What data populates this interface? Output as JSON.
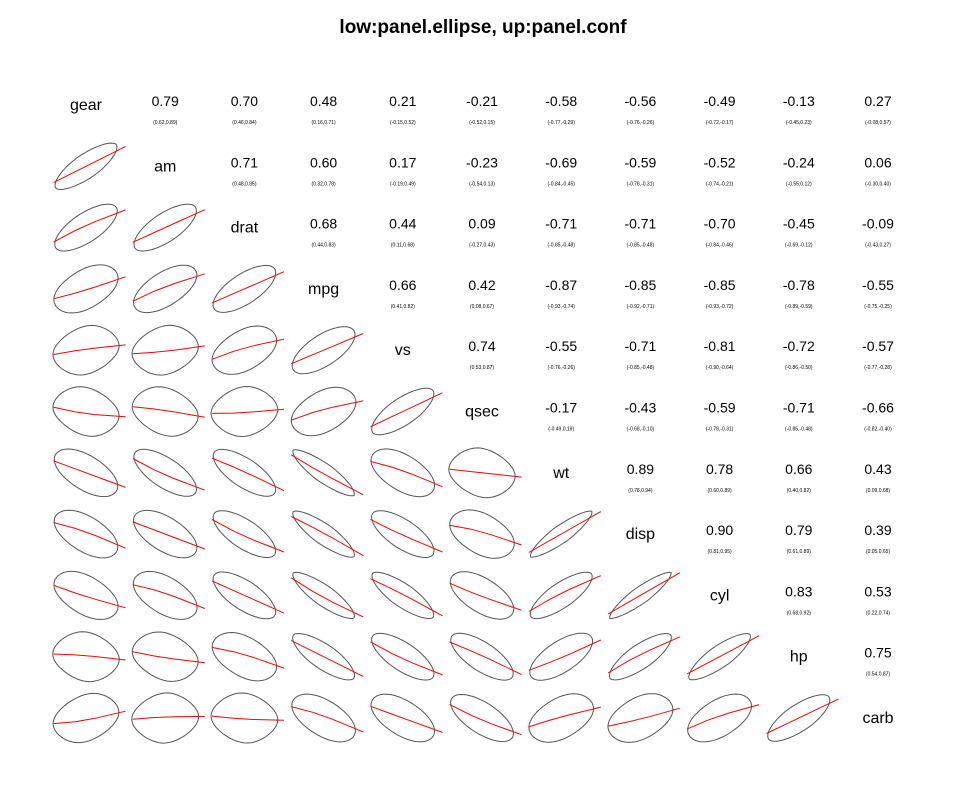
{
  "title": "low:panel.ellipse, up:panel.conf",
  "chart_data": {
    "type": "pairs",
    "lower_panel": "ellipse",
    "upper_panel": "conf",
    "variables": [
      "gear",
      "am",
      "drat",
      "mpg",
      "vs",
      "qsec",
      "wt",
      "disp",
      "cyl",
      "hp",
      "carb"
    ],
    "correlations": [
      [
        1,
        0.79,
        0.7,
        0.48,
        0.21,
        -0.21,
        -0.58,
        -0.56,
        -0.49,
        -0.13,
        0.27
      ],
      [
        0.79,
        1,
        0.71,
        0.6,
        0.17,
        -0.23,
        -0.69,
        -0.59,
        -0.52,
        -0.24,
        0.06
      ],
      [
        0.7,
        0.71,
        1,
        0.68,
        0.44,
        0.09,
        -0.71,
        -0.71,
        -0.7,
        -0.45,
        -0.09
      ],
      [
        0.48,
        0.6,
        0.68,
        1,
        0.66,
        0.42,
        -0.87,
        -0.85,
        -0.85,
        -0.78,
        -0.55
      ],
      [
        0.21,
        0.17,
        0.44,
        0.66,
        1,
        0.74,
        -0.55,
        -0.71,
        -0.81,
        -0.72,
        -0.57
      ],
      [
        -0.21,
        -0.23,
        0.09,
        0.42,
        0.74,
        1,
        -0.17,
        -0.43,
        -0.59,
        -0.71,
        -0.66
      ],
      [
        -0.58,
        -0.69,
        -0.71,
        -0.87,
        -0.55,
        -0.17,
        1,
        0.89,
        0.78,
        0.66,
        0.43
      ],
      [
        -0.56,
        -0.59,
        -0.71,
        -0.85,
        -0.71,
        -0.43,
        0.89,
        1,
        0.9,
        0.79,
        0.39
      ],
      [
        -0.49,
        -0.52,
        -0.7,
        -0.85,
        -0.81,
        -0.59,
        0.78,
        0.9,
        1,
        0.83,
        0.53
      ],
      [
        -0.13,
        -0.24,
        -0.45,
        -0.78,
        -0.72,
        -0.71,
        0.66,
        0.79,
        0.83,
        1,
        0.75
      ],
      [
        0.27,
        0.06,
        -0.09,
        -0.55,
        -0.57,
        -0.66,
        0.43,
        0.39,
        0.53,
        0.75,
        1
      ]
    ],
    "upper_cells": [
      [
        0,
        1,
        "0.79",
        "(0.62,0.89)"
      ],
      [
        0,
        2,
        "0.70",
        "(0.46,0.84)"
      ],
      [
        0,
        3,
        "0.48",
        "(0.16,0.71)"
      ],
      [
        0,
        4,
        "0.21",
        "(-0.15,0.52)"
      ],
      [
        0,
        5,
        "-0.21",
        "(-0.52,0.15)"
      ],
      [
        0,
        6,
        "-0.58",
        "(-0.77,-0.29)"
      ],
      [
        0,
        7,
        "-0.56",
        "(-0.76,-0.26)"
      ],
      [
        0,
        8,
        "-0.49",
        "(-0.72,-0.17)"
      ],
      [
        0,
        9,
        "-0.13",
        "(-0.45,0.23)"
      ],
      [
        0,
        10,
        "0.27",
        "(-0.08,0.57)"
      ],
      [
        1,
        2,
        "0.71",
        "(0.48,0.85)"
      ],
      [
        1,
        3,
        "0.60",
        "(0.32,0.78)"
      ],
      [
        1,
        4,
        "0.17",
        "(-0.19,0.49)"
      ],
      [
        1,
        5,
        "-0.23",
        "(-0.54,0.13)"
      ],
      [
        1,
        6,
        "-0.69",
        "(-0.84,-0.45)"
      ],
      [
        1,
        7,
        "-0.59",
        "(-0.78,-0.31)"
      ],
      [
        1,
        8,
        "-0.52",
        "(-0.74,-0.21)"
      ],
      [
        1,
        9,
        "-0.24",
        "(-0.55,0.12)"
      ],
      [
        1,
        10,
        "0.06",
        "(-0.30,0.40)"
      ],
      [
        2,
        3,
        "0.68",
        "(0.44,0.83)"
      ],
      [
        2,
        4,
        "0.44",
        "(0.11,0.68)"
      ],
      [
        2,
        5,
        "0.09",
        "(-0.27,0.43)"
      ],
      [
        2,
        6,
        "-0.71",
        "(-0.85,-0.48)"
      ],
      [
        2,
        7,
        "-0.71",
        "(-0.85,-0.48)"
      ],
      [
        2,
        8,
        "-0.70",
        "(-0.84,-0.46)"
      ],
      [
        2,
        9,
        "-0.45",
        "(-0.69,-0.12)"
      ],
      [
        2,
        10,
        "-0.09",
        "(-0.43,0.27)"
      ],
      [
        3,
        4,
        "0.66",
        "(0.41,0.82)"
      ],
      [
        3,
        5,
        "0.42",
        "(0.08,0.67)"
      ],
      [
        3,
        6,
        "-0.87",
        "(-0.93,-0.74)"
      ],
      [
        3,
        7,
        "-0.85",
        "(-0.92,-0.71)"
      ],
      [
        3,
        8,
        "-0.85",
        "(-0.93,-0.72)"
      ],
      [
        3,
        9,
        "-0.78",
        "(-0.89,-0.59)"
      ],
      [
        3,
        10,
        "-0.55",
        "(-0.75,-0.25)"
      ],
      [
        4,
        5,
        "0.74",
        "(0.53,0.87)"
      ],
      [
        4,
        6,
        "-0.55",
        "(-0.76,-0.26)"
      ],
      [
        4,
        7,
        "-0.71",
        "(-0.85,-0.48)"
      ],
      [
        4,
        8,
        "-0.81",
        "(-0.90,-0.64)"
      ],
      [
        4,
        9,
        "-0.72",
        "(-0.86,-0.50)"
      ],
      [
        4,
        10,
        "-0.57",
        "(-0.77,-0.28)"
      ],
      [
        5,
        6,
        "-0.17",
        "(-0.49,0.19)"
      ],
      [
        5,
        7,
        "-0.43",
        "(-0.68,-0.10)"
      ],
      [
        5,
        8,
        "-0.59",
        "(-0.78,-0.31)"
      ],
      [
        5,
        9,
        "-0.71",
        "(-0.85,-0.48)"
      ],
      [
        5,
        10,
        "-0.66",
        "(-0.82,-0.40)"
      ],
      [
        6,
        7,
        "0.89",
        "(0.78,0.94)"
      ],
      [
        6,
        8,
        "0.78",
        "(0.60,0.89)"
      ],
      [
        6,
        9,
        "0.66",
        "(0.40,0.82)"
      ],
      [
        6,
        10,
        "0.43",
        "(0.09,0.68)"
      ],
      [
        7,
        8,
        "0.90",
        "(0.81,0.95)"
      ],
      [
        7,
        9,
        "0.79",
        "(0.61,0.89)"
      ],
      [
        7,
        10,
        "0.39",
        "(0.05,0.65)"
      ],
      [
        8,
        9,
        "0.83",
        "(0.68,0.92)"
      ],
      [
        8,
        10,
        "0.53",
        "(0.22,0.74)"
      ],
      [
        9,
        10,
        "0.75",
        "(0.54,0.87)"
      ]
    ],
    "lower_colors": {
      "ellipse": "#555555",
      "smooth": "#ff0000"
    }
  }
}
